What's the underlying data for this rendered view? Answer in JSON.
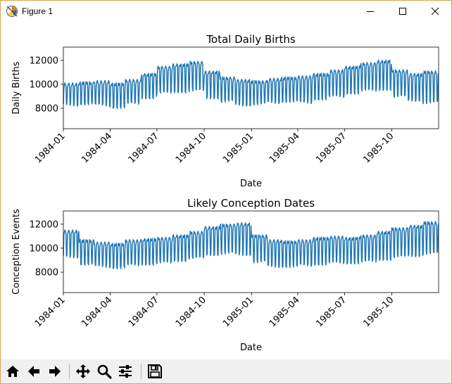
{
  "window": {
    "title": "Figure 1",
    "icon": "matplotlib-icon",
    "buttons": [
      "minimize-icon",
      "maximize-icon",
      "close-icon"
    ]
  },
  "toolbar": {
    "buttons": [
      "home-icon",
      "back-arrow-icon",
      "forward-arrow-icon",
      "pan-icon",
      "zoom-icon",
      "configure-subplots-icon",
      "save-icon"
    ]
  },
  "colors": {
    "line": "#1f77b4",
    "window_border": "#e0a24a",
    "toolbar_bg": "#f0f0f0"
  },
  "chart_data": [
    {
      "type": "line",
      "title": "Total Daily Births",
      "xlabel": "Date",
      "ylabel": "Daily Births",
      "x_start": "1984-01-01",
      "x_end": "1985-12-31",
      "xlim": [
        "1984-01-01",
        "1985-12-31"
      ],
      "ylim": [
        6300,
        13100
      ],
      "xticks": [
        "1984-01",
        "1984-04",
        "1984-07",
        "1984-10",
        "1985-01",
        "1985-04",
        "1985-07",
        "1985-10"
      ],
      "yticks": [
        8000,
        10000,
        12000
      ],
      "grid": false,
      "weekly_pattern": "weekday values high, weekend values low",
      "monthly_weekday_level": [
        {
          "month": "1984-01",
          "weekday": 10000,
          "weekend": 8300
        },
        {
          "month": "1984-02",
          "weekday": 10100,
          "weekend": 8400
        },
        {
          "month": "1984-03",
          "weekday": 10200,
          "weekend": 8300
        },
        {
          "month": "1984-04",
          "weekday": 10000,
          "weekend": 8100
        },
        {
          "month": "1984-05",
          "weekday": 10300,
          "weekend": 8400
        },
        {
          "month": "1984-06",
          "weekday": 10800,
          "weekend": 8900
        },
        {
          "month": "1984-07",
          "weekday": 11400,
          "weekend": 9300
        },
        {
          "month": "1984-08",
          "weekday": 11600,
          "weekend": 9400
        },
        {
          "month": "1984-09",
          "weekday": 11800,
          "weekend": 9500
        },
        {
          "month": "1984-10",
          "weekday": 11000,
          "weekend": 8900
        },
        {
          "month": "1984-11",
          "weekday": 10500,
          "weekend": 8600
        },
        {
          "month": "1984-12",
          "weekday": 10300,
          "weekend": 8300
        },
        {
          "month": "1985-01",
          "weekday": 10200,
          "weekend": 8400
        },
        {
          "month": "1985-02",
          "weekday": 10400,
          "weekend": 8500
        },
        {
          "month": "1985-03",
          "weekday": 10500,
          "weekend": 8600
        },
        {
          "month": "1985-04",
          "weekday": 10600,
          "weekend": 8500
        },
        {
          "month": "1985-05",
          "weekday": 10800,
          "weekend": 8800
        },
        {
          "month": "1985-06",
          "weekday": 11100,
          "weekend": 9000
        },
        {
          "month": "1985-07",
          "weekday": 11400,
          "weekend": 9300
        },
        {
          "month": "1985-08",
          "weekday": 11700,
          "weekend": 9500
        },
        {
          "month": "1985-09",
          "weekday": 11900,
          "weekend": 9600
        },
        {
          "month": "1985-10",
          "weekday": 11100,
          "weekend": 9000
        },
        {
          "month": "1985-11",
          "weekday": 10800,
          "weekend": 8700
        },
        {
          "month": "1985-12",
          "weekday": 11000,
          "weekend": 8500
        }
      ]
    },
    {
      "type": "line",
      "title": "Likely Conception Dates",
      "xlabel": "Date",
      "ylabel": "Conception Events",
      "x_start": "1984-01-01",
      "x_end": "1985-12-31",
      "xlim": [
        "1984-01-01",
        "1985-12-31"
      ],
      "ylim": [
        6300,
        13100
      ],
      "xticks": [
        "1984-01",
        "1984-04",
        "1984-07",
        "1984-10",
        "1985-01",
        "1985-04",
        "1985-07",
        "1985-10"
      ],
      "yticks": [
        8000,
        10000,
        12000
      ],
      "grid": false,
      "weekly_pattern": "weekday values high, weekend values low",
      "monthly_weekday_level": [
        {
          "month": "1984-01",
          "weekday": 11400,
          "weekend": 9300
        },
        {
          "month": "1984-02",
          "weekday": 10600,
          "weekend": 8700
        },
        {
          "month": "1984-03",
          "weekday": 10400,
          "weekend": 8500
        },
        {
          "month": "1984-04",
          "weekday": 10300,
          "weekend": 8400
        },
        {
          "month": "1984-05",
          "weekday": 10600,
          "weekend": 8600
        },
        {
          "month": "1984-06",
          "weekday": 10700,
          "weekend": 8700
        },
        {
          "month": "1984-07",
          "weekday": 10800,
          "weekend": 8800
        },
        {
          "month": "1984-08",
          "weekday": 11000,
          "weekend": 9000
        },
        {
          "month": "1984-09",
          "weekday": 11300,
          "weekend": 9200
        },
        {
          "month": "1984-10",
          "weekday": 11700,
          "weekend": 9500
        },
        {
          "month": "1984-11",
          "weekday": 11900,
          "weekend": 9600
        },
        {
          "month": "1984-12",
          "weekday": 12000,
          "weekend": 9500
        },
        {
          "month": "1985-01",
          "weekday": 11000,
          "weekend": 8900
        },
        {
          "month": "1985-02",
          "weekday": 10600,
          "weekend": 8500
        },
        {
          "month": "1985-03",
          "weekday": 10500,
          "weekend": 8500
        },
        {
          "month": "1985-04",
          "weekday": 10600,
          "weekend": 8600
        },
        {
          "month": "1985-05",
          "weekday": 10800,
          "weekend": 8700
        },
        {
          "month": "1985-06",
          "weekday": 10900,
          "weekend": 8800
        },
        {
          "month": "1985-07",
          "weekday": 10800,
          "weekend": 8800
        },
        {
          "month": "1985-08",
          "weekday": 11000,
          "weekend": 8900
        },
        {
          "month": "1985-09",
          "weekday": 11300,
          "weekend": 9100
        },
        {
          "month": "1985-10",
          "weekday": 11600,
          "weekend": 9300
        },
        {
          "month": "1985-11",
          "weekday": 11800,
          "weekend": 9400
        },
        {
          "month": "1985-12",
          "weekday": 12100,
          "weekend": 9600
        }
      ]
    }
  ]
}
